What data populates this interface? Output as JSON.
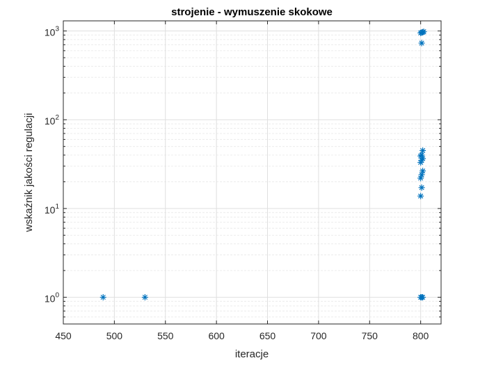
{
  "chart_data": {
    "type": "scatter",
    "title": "strojenie - wymuszenie skokowe",
    "xlabel": "iteracje",
    "ylabel": "wskaźnik jakości regulacji",
    "xlim": [
      450,
      820
    ],
    "ylim": [
      0.5,
      1300
    ],
    "yscale": "log",
    "grid": true,
    "marker": "asterisk",
    "color": "#0072bd",
    "xticks": [
      450,
      500,
      550,
      600,
      650,
      700,
      750,
      800
    ],
    "yticks": [
      {
        "value": 1,
        "base": "10",
        "exp": "0"
      },
      {
        "value": 10,
        "base": "10",
        "exp": "1"
      },
      {
        "value": 100,
        "base": "10",
        "exp": "2"
      },
      {
        "value": 1000,
        "base": "10",
        "exp": "3"
      }
    ],
    "points": [
      {
        "x": 489,
        "y": 1
      },
      {
        "x": 530,
        "y": 1
      },
      {
        "x": 800,
        "y": 1
      },
      {
        "x": 801,
        "y": 1
      },
      {
        "x": 802,
        "y": 1
      },
      {
        "x": 800,
        "y": 13.8
      },
      {
        "x": 801,
        "y": 17.2
      },
      {
        "x": 800,
        "y": 22
      },
      {
        "x": 801,
        "y": 24
      },
      {
        "x": 802,
        "y": 26.5
      },
      {
        "x": 800,
        "y": 33
      },
      {
        "x": 801,
        "y": 35
      },
      {
        "x": 802,
        "y": 36.5
      },
      {
        "x": 800,
        "y": 39
      },
      {
        "x": 801,
        "y": 40
      },
      {
        "x": 802,
        "y": 45
      },
      {
        "x": 801,
        "y": 730
      },
      {
        "x": 800,
        "y": 950
      },
      {
        "x": 801,
        "y": 960
      },
      {
        "x": 802,
        "y": 970
      },
      {
        "x": 803,
        "y": 980
      }
    ]
  }
}
